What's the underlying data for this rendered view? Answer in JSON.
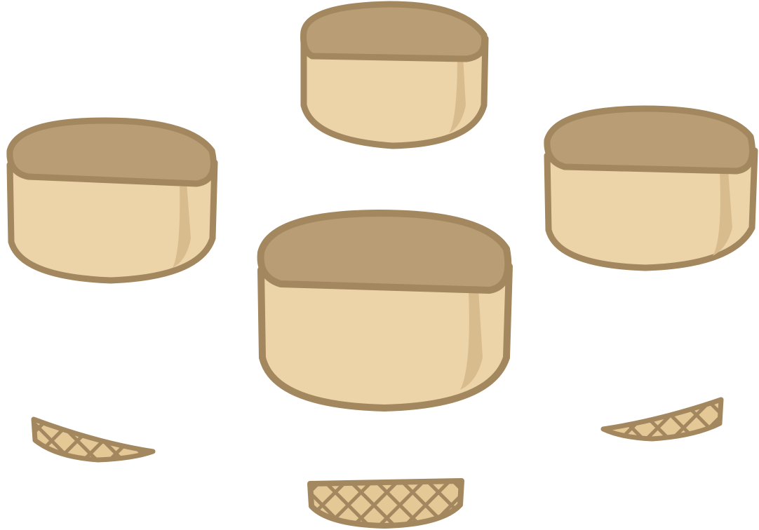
{
  "scene": {
    "items": [
      {
        "kind": "round-stool",
        "ground_shadow": false
      },
      {
        "kind": "round-stool",
        "ground_shadow": false
      },
      {
        "kind": "round-stool",
        "ground_shadow": false
      },
      {
        "kind": "round-stool",
        "ground_shadow": false
      }
    ],
    "base_fragments": 3
  },
  "colors": {
    "background": "#ffffff",
    "outline": "#a3875f",
    "cushion_top": "#b89d75",
    "cushion_top_light": "#c4a87f",
    "body": "#ecd4a8",
    "body_shade": "#d9bc8d",
    "wicker": "#e4c896",
    "wicker_dark": "#a3875f"
  }
}
